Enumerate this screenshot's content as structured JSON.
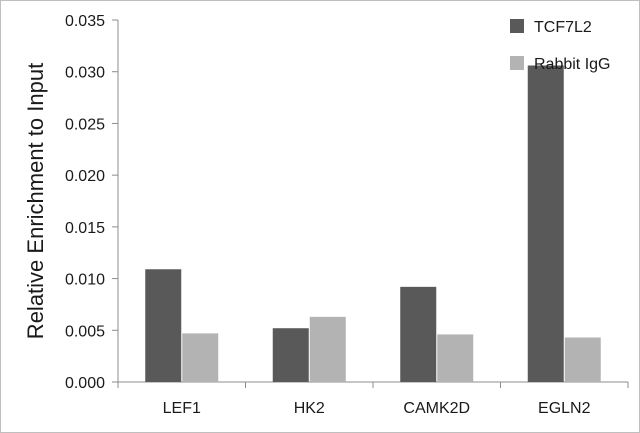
{
  "colors": {
    "tcf7l2": "#595959",
    "rabbit_igg": "#b3b3b3",
    "axis": "#8c8c8c",
    "text": "#1a1a1a"
  },
  "chart_data": {
    "type": "bar",
    "title": "",
    "xlabel": "",
    "ylabel": "Relative Enrichment to Input",
    "categories": [
      "LEF1",
      "HK2",
      "CAMK2D",
      "EGLN2"
    ],
    "series": [
      {
        "name": "TCF7L2",
        "values": [
          0.0109,
          0.0052,
          0.0092,
          0.0306
        ]
      },
      {
        "name": "Rabbit IgG",
        "values": [
          0.0047,
          0.0063,
          0.0046,
          0.0043
        ]
      }
    ],
    "ylim": [
      0,
      0.035
    ],
    "yticks": [
      "0.000",
      "0.005",
      "0.010",
      "0.015",
      "0.020",
      "0.025",
      "0.030",
      "0.035"
    ],
    "grid": false,
    "legend_position": "top-right"
  }
}
